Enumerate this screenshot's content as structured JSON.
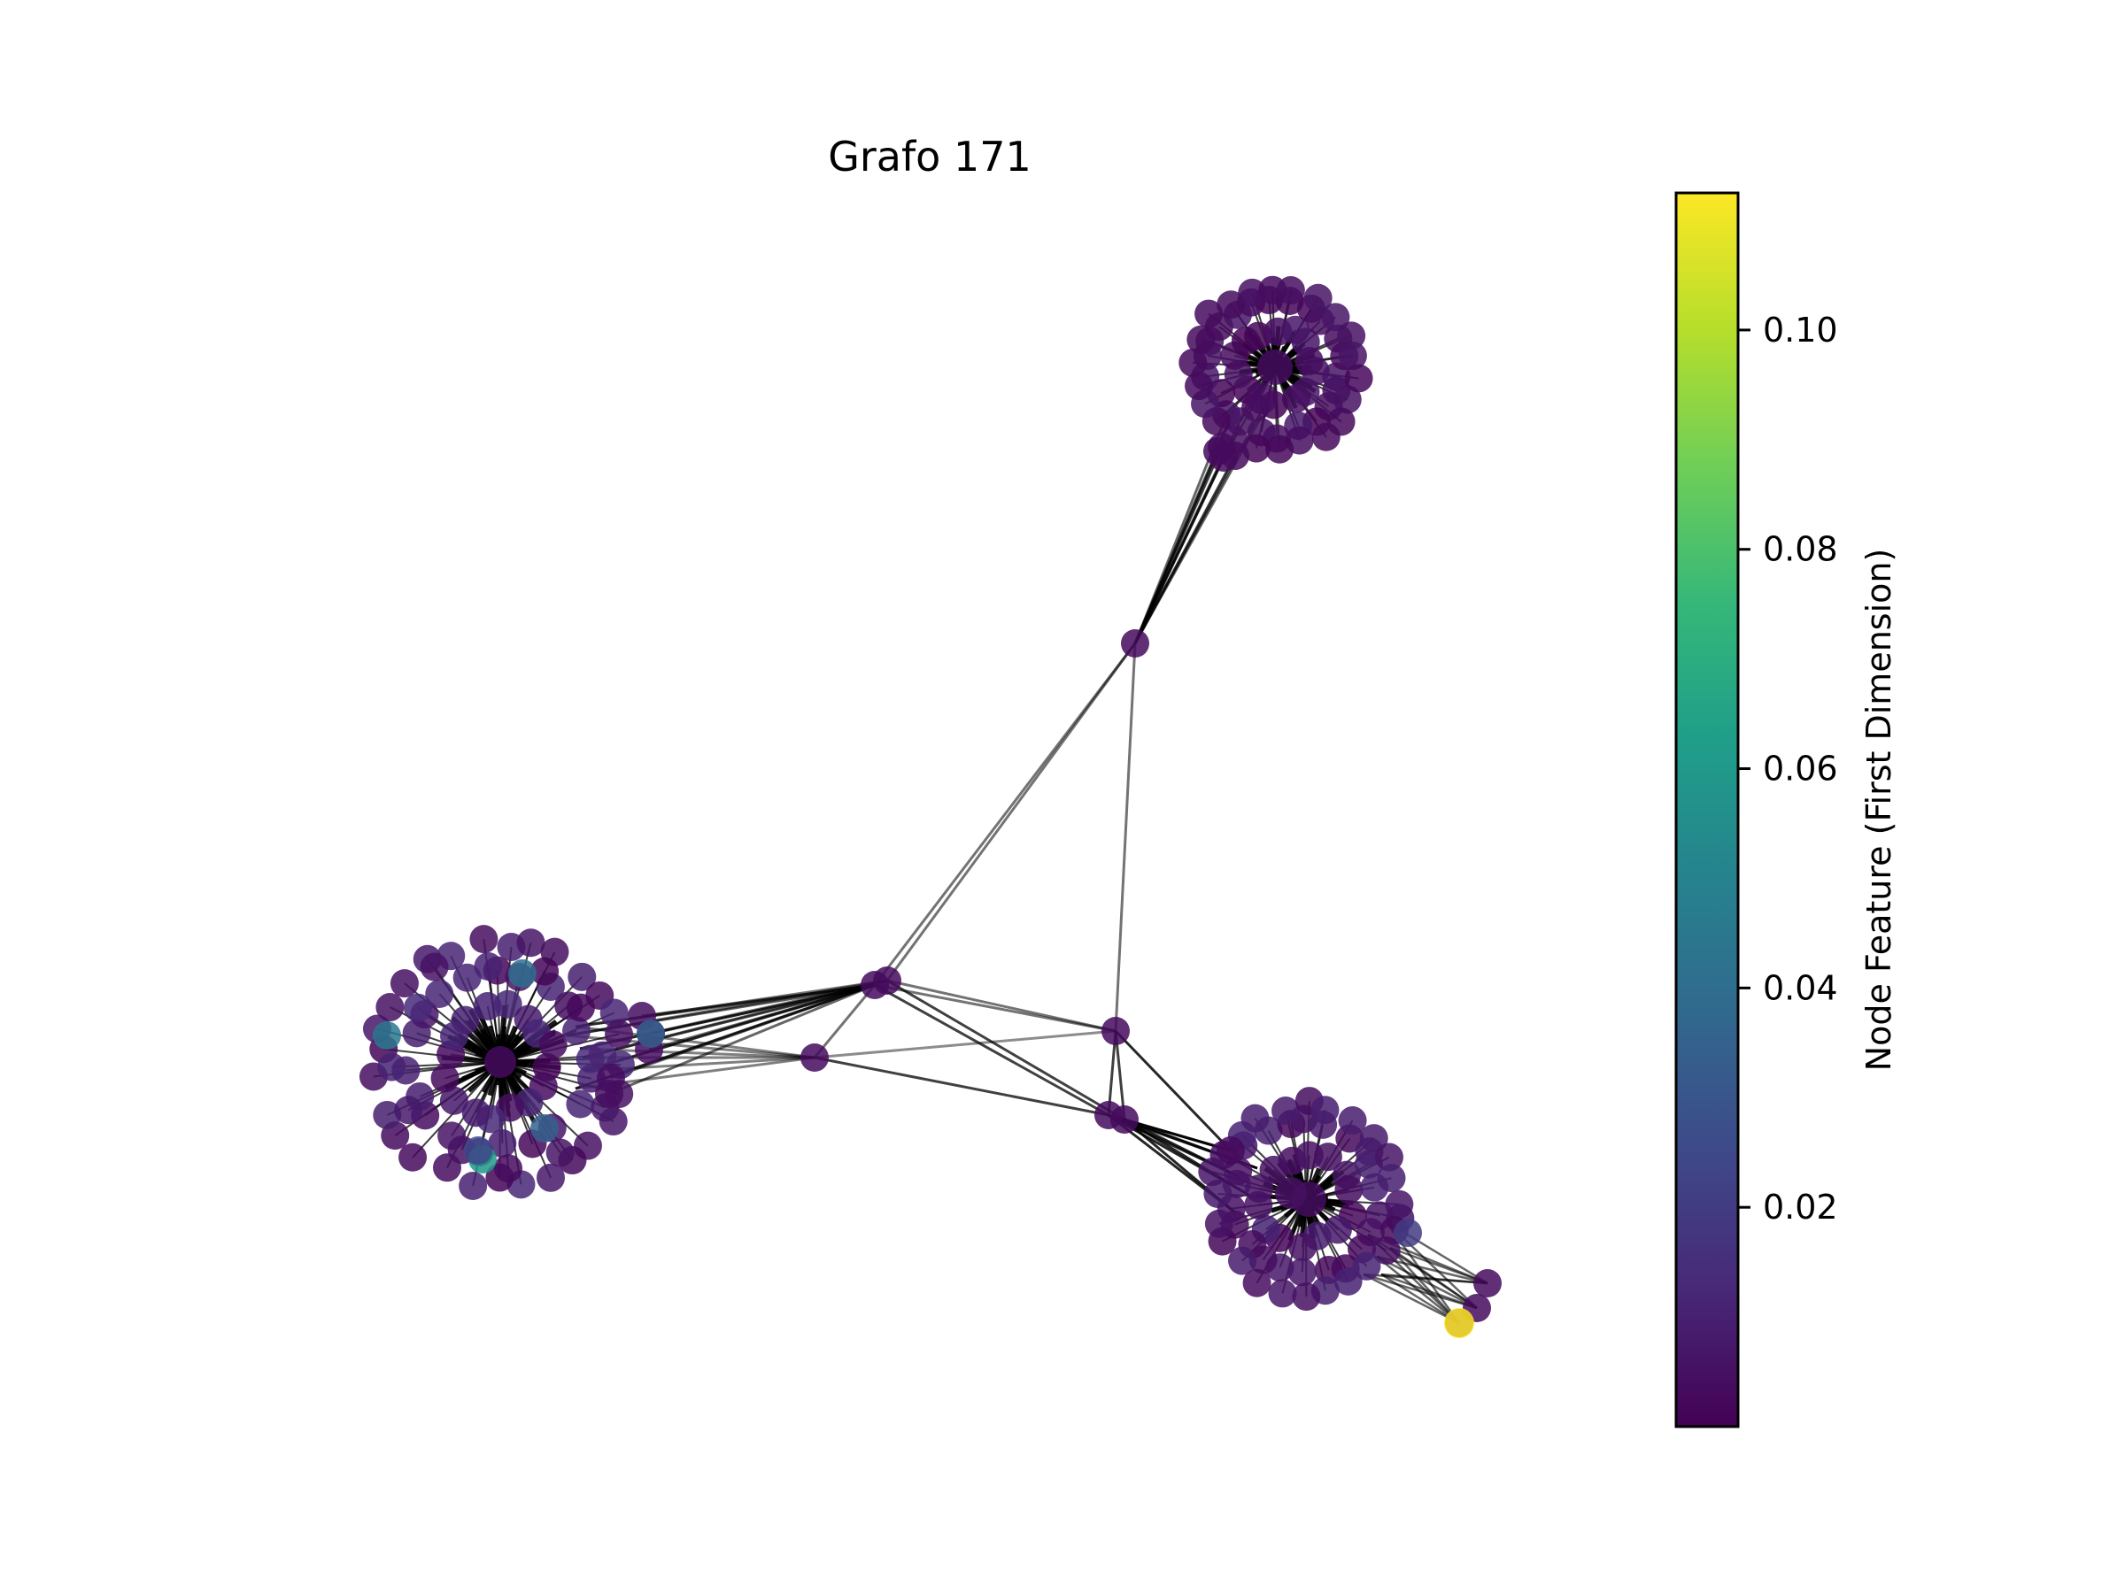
{
  "figure": {
    "title": "Grafo 171",
    "edge_color": "#000000",
    "colorbar": {
      "label": "Node Feature (First Dimension)",
      "colormap": "viridis",
      "range": [
        0.0,
        0.1125
      ],
      "ticks": [
        {
          "value": 0.02,
          "label": "0.02"
        },
        {
          "value": 0.04,
          "label": "0.04"
        },
        {
          "value": 0.06,
          "label": "0.06"
        },
        {
          "value": 0.08,
          "label": "0.08"
        },
        {
          "value": 0.1,
          "label": "0.10"
        }
      ],
      "stops": [
        "#440154",
        "#482878",
        "#3e4989",
        "#31688e",
        "#26828e",
        "#1f9e89",
        "#35b779",
        "#6ece58",
        "#b5de2b",
        "#fde725"
      ]
    }
  }
}
